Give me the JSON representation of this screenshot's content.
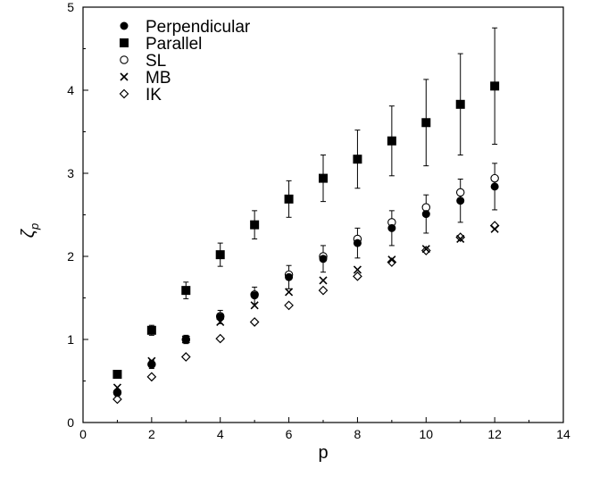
{
  "chart_data": {
    "type": "scatter",
    "title": "",
    "xlabel": "p",
    "ylabel": "ζ",
    "ylabel_subscript": "p",
    "xlim": [
      0,
      14
    ],
    "ylim": [
      0,
      5
    ],
    "xticks": [
      0,
      2,
      4,
      6,
      8,
      10,
      12,
      14
    ],
    "yticks": [
      0,
      1,
      2,
      3,
      4,
      5
    ],
    "grid": false,
    "legend_position": "top-left",
    "series": [
      {
        "name": "Perpendicular",
        "marker": "filled-circle",
        "x": [
          1,
          2,
          3,
          4,
          5,
          6,
          7,
          8,
          9,
          10,
          11,
          12
        ],
        "y": [
          0.36,
          0.7,
          1.0,
          1.27,
          1.53,
          1.75,
          1.97,
          2.16,
          2.34,
          2.51,
          2.67,
          2.84
        ],
        "error": [
          0.04,
          0.05,
          0.05,
          0.08,
          0.1,
          0.14,
          0.16,
          0.18,
          0.21,
          0.23,
          0.26,
          0.28
        ]
      },
      {
        "name": "Parallel",
        "marker": "filled-square",
        "x": [
          1,
          2,
          3,
          4,
          5,
          6,
          7,
          8,
          9,
          10,
          11,
          12
        ],
        "y": [
          0.58,
          1.11,
          1.59,
          2.02,
          2.38,
          2.69,
          2.94,
          3.17,
          3.39,
          3.61,
          3.83,
          4.05
        ],
        "error": [
          0.04,
          0.06,
          0.1,
          0.14,
          0.17,
          0.22,
          0.28,
          0.35,
          0.42,
          0.52,
          0.61,
          0.7
        ]
      },
      {
        "name": "SL",
        "marker": "open-circle",
        "x": [
          1,
          2,
          3,
          4,
          5,
          6,
          7,
          8,
          9,
          10,
          11,
          12
        ],
        "y": [
          0.36,
          0.7,
          1.0,
          1.28,
          1.54,
          1.78,
          2.0,
          2.21,
          2.41,
          2.59,
          2.77,
          2.94
        ]
      },
      {
        "name": "MB",
        "marker": "cross",
        "x": [
          1,
          2,
          3,
          4,
          5,
          6,
          7,
          8,
          9,
          10,
          11,
          12
        ],
        "y": [
          0.42,
          0.74,
          1.0,
          1.21,
          1.41,
          1.57,
          1.71,
          1.84,
          1.96,
          2.09,
          2.21,
          2.33
        ]
      },
      {
        "name": "IK",
        "marker": "open-diamond",
        "x": [
          1,
          2,
          3,
          4,
          5,
          6,
          7,
          8,
          9,
          10,
          11,
          12
        ],
        "y": [
          0.28,
          0.55,
          0.79,
          1.01,
          1.21,
          1.41,
          1.59,
          1.76,
          1.93,
          2.07,
          2.23,
          2.37
        ]
      }
    ]
  }
}
